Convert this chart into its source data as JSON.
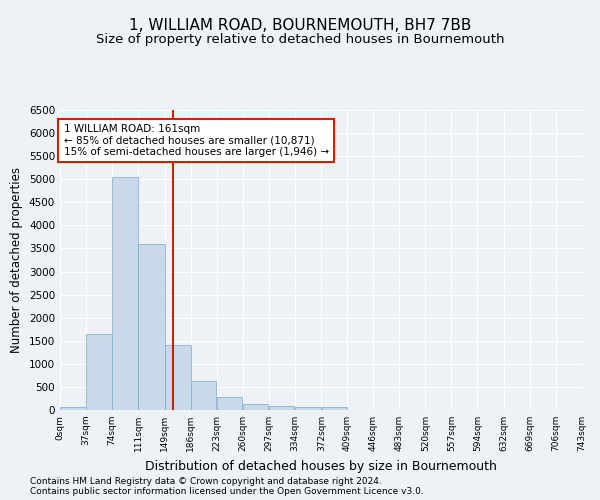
{
  "title": "1, WILLIAM ROAD, BOURNEMOUTH, BH7 7BB",
  "subtitle": "Size of property relative to detached houses in Bournemouth",
  "xlabel": "Distribution of detached houses by size in Bournemouth",
  "ylabel": "Number of detached properties",
  "footer_line1": "Contains HM Land Registry data © Crown copyright and database right 2024.",
  "footer_line2": "Contains public sector information licensed under the Open Government Licence v3.0.",
  "bar_values": [
    75,
    1650,
    5050,
    3600,
    1400,
    620,
    290,
    130,
    90,
    60,
    60,
    0,
    0,
    0,
    0,
    0,
    0,
    0,
    0,
    0
  ],
  "bin_edges": [
    0,
    37,
    74,
    111,
    149,
    186,
    223,
    260,
    297,
    334,
    372,
    409,
    446,
    483,
    520,
    557,
    594,
    632,
    669,
    706,
    743
  ],
  "x_tick_labels": [
    "0sqm",
    "37sqm",
    "74sqm",
    "111sqm",
    "149sqm",
    "186sqm",
    "223sqm",
    "260sqm",
    "297sqm",
    "334sqm",
    "372sqm",
    "409sqm",
    "446sqm",
    "483sqm",
    "520sqm",
    "557sqm",
    "594sqm",
    "632sqm",
    "669sqm",
    "706sqm",
    "743sqm"
  ],
  "bar_color": "#c9d9ea",
  "bar_edge_color": "#7aaac8",
  "vline_x": 161,
  "vline_color": "#cc2200",
  "annotation_text": "1 WILLIAM ROAD: 161sqm\n← 85% of detached houses are smaller (10,871)\n15% of semi-detached houses are larger (1,946) →",
  "annotation_box_facecolor": "#ffffff",
  "annotation_box_edgecolor": "#cc2200",
  "ylim": [
    0,
    6500
  ],
  "yticks": [
    0,
    500,
    1000,
    1500,
    2000,
    2500,
    3000,
    3500,
    4000,
    4500,
    5000,
    5500,
    6000,
    6500
  ],
  "bg_color": "#eef2f7",
  "grid_color": "#ffffff",
  "title_fontsize": 11,
  "subtitle_fontsize": 9.5,
  "xlabel_fontsize": 9,
  "ylabel_fontsize": 8.5,
  "footer_fontsize": 6.5,
  "tick_fontsize": 7.5,
  "xtick_fontsize": 6.5
}
